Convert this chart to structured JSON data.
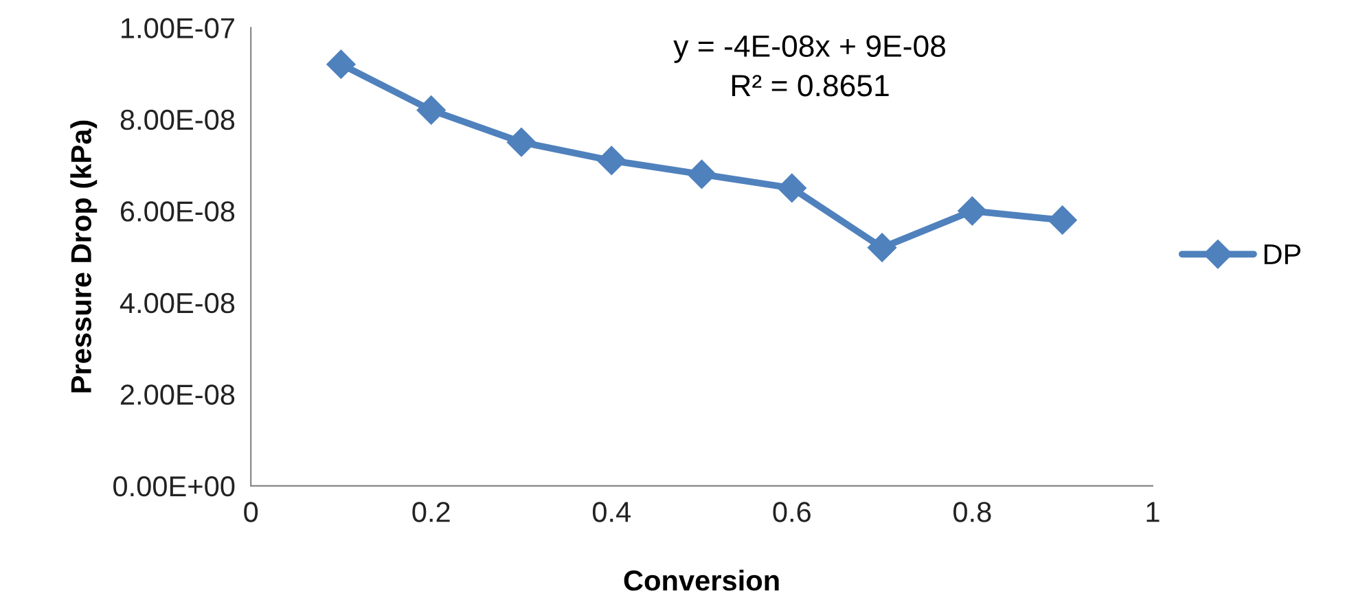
{
  "chart_data": {
    "type": "line",
    "xlabel": "Conversion",
    "ylabel": "Pressure Drop (kPa)",
    "x": [
      0.1,
      0.2,
      0.3,
      0.4,
      0.5,
      0.6,
      0.7,
      0.8,
      0.9
    ],
    "series": [
      {
        "name": "DP",
        "color": "#4f81bd",
        "values": [
          9.2e-08,
          8.2e-08,
          7.5e-08,
          7.1e-08,
          6.8e-08,
          6.5e-08,
          5.2e-08,
          6e-08,
          5.8e-08
        ]
      }
    ],
    "xlim": [
      0,
      1
    ],
    "xticks": [
      0,
      0.2,
      0.4,
      0.6,
      0.8,
      1
    ],
    "ylim": [
      0,
      1e-07
    ],
    "yticks": [
      {
        "value": 0,
        "label": "0.00E+00"
      },
      {
        "value": 2e-08,
        "label": "2.00E-08"
      },
      {
        "value": 4e-08,
        "label": "4.00E-08"
      },
      {
        "value": 6e-08,
        "label": "6.00E-08"
      },
      {
        "value": 8e-08,
        "label": "8.00E-08"
      },
      {
        "value": 1e-07,
        "label": "1.00E-07"
      }
    ],
    "annotations": [
      "y = -4E-08x + 9E-08\nR² = 0.8651"
    ],
    "grid": false,
    "legend": "right",
    "marker": "diamond",
    "line_style": "solid"
  }
}
